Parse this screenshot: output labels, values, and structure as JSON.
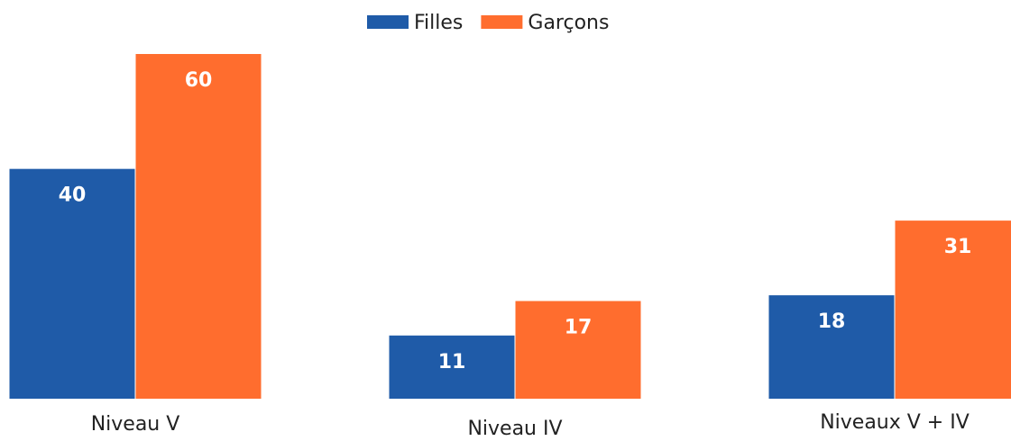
{
  "chart_data": {
    "type": "bar",
    "categories": [
      "Niveau V",
      "Niveau IV",
      "Niveaux V + IV"
    ],
    "series": [
      {
        "name": "Filles",
        "color": "#1f5ba8",
        "values": [
          40,
          11,
          18
        ]
      },
      {
        "name": "Garçons",
        "color": "#ff6d2e",
        "values": [
          60,
          17,
          31
        ]
      }
    ]
  }
}
